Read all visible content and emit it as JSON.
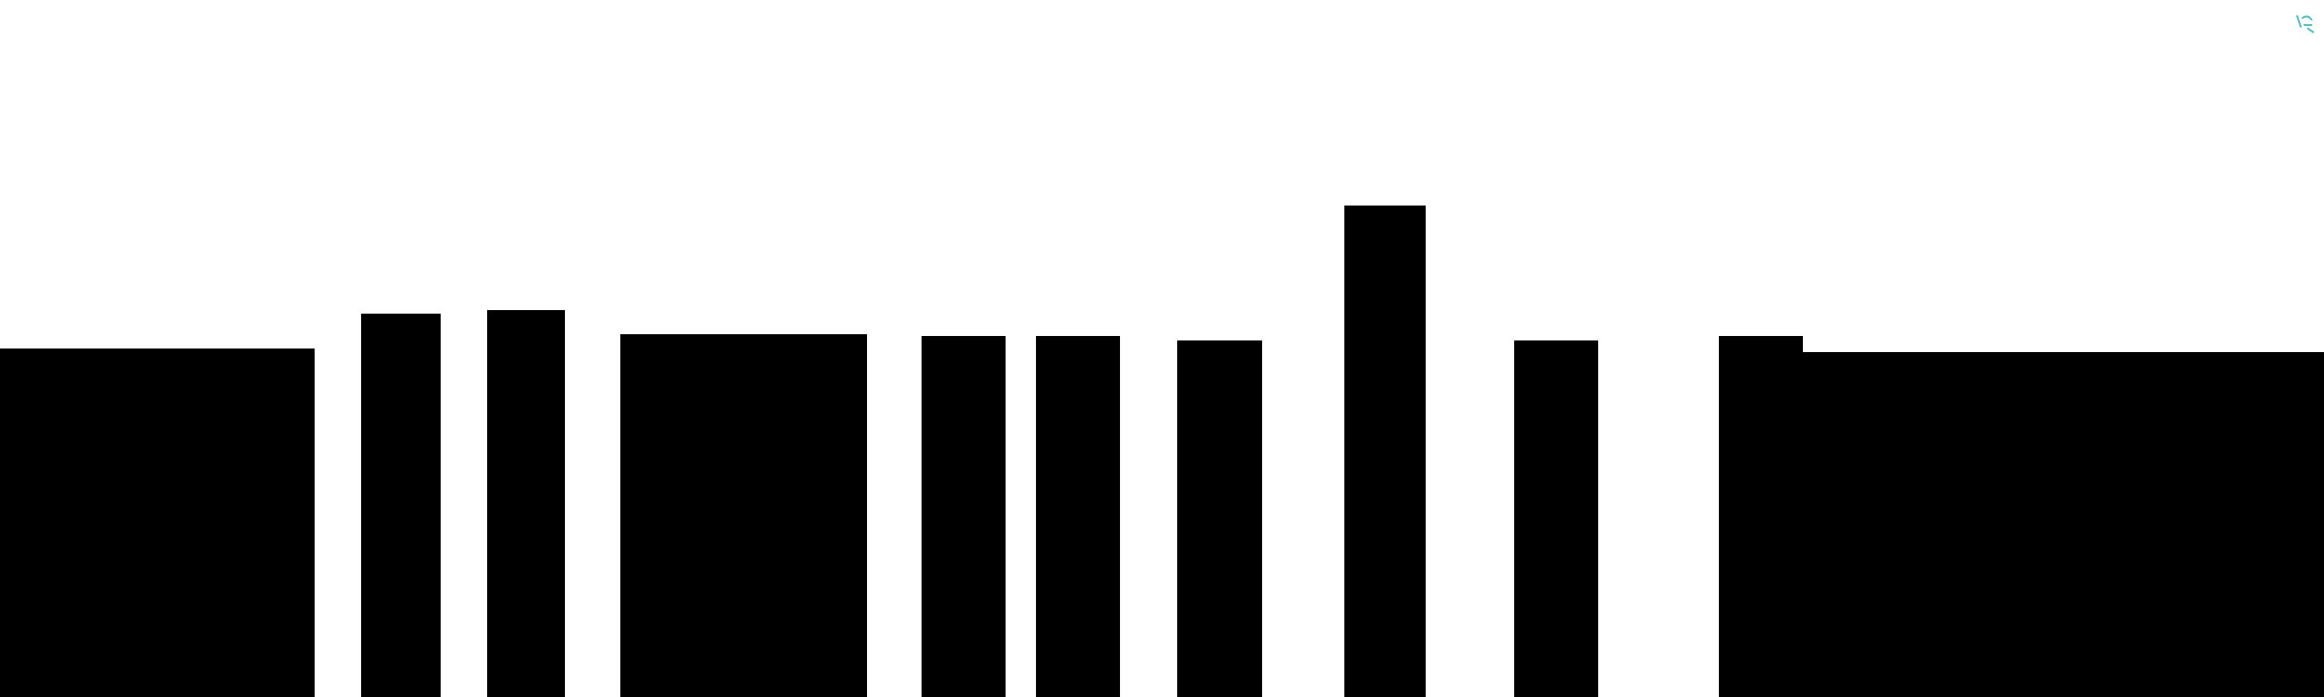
{
  "colors": {
    "background": "#ffffff",
    "bars": "#000000",
    "corner_glyph": "#4dbfc4"
  },
  "icons": {
    "corner": "sparkle-icon"
  },
  "bars": {
    "count": 11,
    "levels": [
      0.5,
      0.55,
      0.555,
      0.52,
      0.518,
      0.518,
      0.512,
      0.705,
      0.512,
      0.518,
      0.495
    ]
  }
}
